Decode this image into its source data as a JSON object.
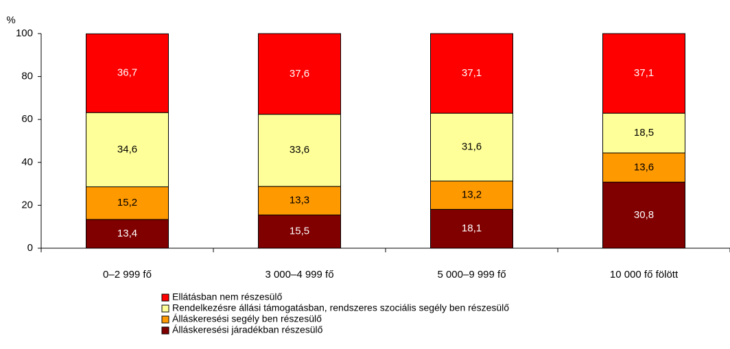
{
  "chart_data": {
    "type": "stacked_bar",
    "y_label": "%",
    "categories": [
      "0–2 999 fő",
      "3 000–4 999 fő",
      "5 000–9 999 fő",
      "10 000 fő fölött"
    ],
    "series": [
      {
        "name": "Ellátásban nem részesülő",
        "color": "#ff0000",
        "values": [
          36.7,
          37.6,
          37.1,
          37.1
        ],
        "value_labels": [
          "36,7",
          "37,6",
          "37,1",
          "37,1"
        ]
      },
      {
        "name": "Rendelkezésre állási támogatásban, rendszeres szociális segély ben részesülő",
        "color": "#ffff99",
        "values": [
          34.6,
          33.6,
          31.6,
          18.5
        ],
        "value_labels": [
          "34,6",
          "33,6",
          "31,6",
          "18,5"
        ]
      },
      {
        "name": "Álláskeresési segély ben részesülő",
        "color": "#ff9900",
        "values": [
          15.2,
          13.3,
          13.2,
          13.6
        ],
        "value_labels": [
          "15,2",
          "13,3",
          "13,2",
          "13,6"
        ]
      },
      {
        "name": "Álláskeresési járadékban részesülő",
        "color": "#800000",
        "values": [
          13.4,
          15.5,
          18.1,
          30.8
        ],
        "value_labels": [
          "13,4",
          "15,5",
          "18,1",
          "30,8"
        ]
      }
    ],
    "ylim": [
      0,
      100
    ],
    "yticks": [
      0,
      20,
      40,
      60,
      80,
      100
    ]
  }
}
